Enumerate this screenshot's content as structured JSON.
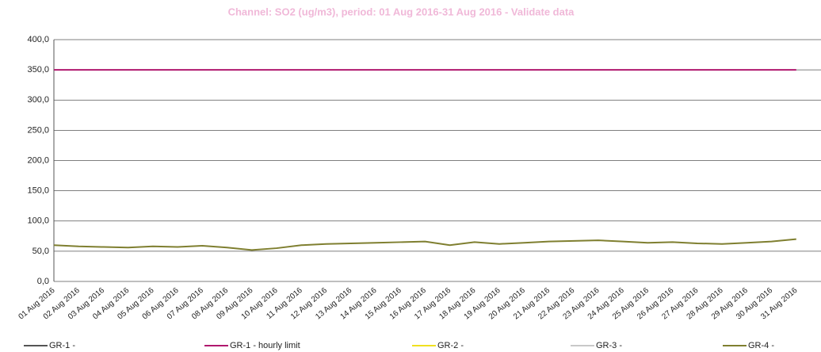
{
  "chart_data": {
    "type": "line",
    "title": "Channel: SO2 (ug/m3), period: 01 Aug 2016-31 Aug 2016 - Validate data",
    "categories": [
      "01 Aug 2016",
      "02 Aug 2016",
      "03 Aug 2016",
      "04 Aug 2016",
      "05 Aug 2016",
      "06 Aug 2016",
      "07 Aug 2016",
      "08 Aug 2016",
      "09 Aug 2016",
      "10 Aug 2016",
      "11 Aug 2016",
      "12 Aug 2016",
      "13 Aug 2016",
      "14 Aug 2016",
      "15 Aug 2016",
      "16 Aug 2016",
      "17 Aug 2016",
      "18 Aug 2016",
      "19 Aug 2016",
      "20 Aug 2016",
      "21 Aug 2016",
      "22 Aug 2016",
      "23 Aug 2016",
      "24 Aug 2016",
      "25 Aug 2016",
      "26 Aug 2016",
      "27 Aug 2016",
      "28 Aug 2016",
      "29 Aug 2016",
      "30 Aug 2016",
      "31 Aug 2016"
    ],
    "series": [
      {
        "name": "GR-1 -",
        "color": "#555555",
        "values": [
          null,
          null,
          null,
          null,
          null,
          null,
          null,
          null,
          null,
          null,
          null,
          null,
          null,
          null,
          null,
          null,
          null,
          null,
          null,
          null,
          null,
          null,
          null,
          null,
          null,
          null,
          null,
          null,
          null,
          null,
          null
        ]
      },
      {
        "name": "GR-1 - hourly limit",
        "color": "#b0186e",
        "values": [
          350,
          350,
          350,
          350,
          350,
          350,
          350,
          350,
          350,
          350,
          350,
          350,
          350,
          350,
          350,
          350,
          350,
          350,
          350,
          350,
          350,
          350,
          350,
          350,
          350,
          350,
          350,
          350,
          350,
          350,
          350
        ]
      },
      {
        "name": "GR-2 -",
        "color": "#f0e020",
        "values": [
          null,
          null,
          null,
          null,
          null,
          null,
          null,
          null,
          null,
          null,
          null,
          null,
          null,
          null,
          null,
          null,
          null,
          null,
          null,
          null,
          null,
          null,
          null,
          null,
          null,
          null,
          null,
          null,
          null,
          null,
          null
        ]
      },
      {
        "name": "GR-3 -",
        "color": "#c8c8c8",
        "values": [
          null,
          null,
          null,
          null,
          null,
          null,
          null,
          null,
          null,
          null,
          null,
          null,
          null,
          null,
          null,
          null,
          null,
          null,
          null,
          null,
          null,
          null,
          null,
          null,
          null,
          null,
          null,
          null,
          null,
          null,
          null
        ]
      },
      {
        "name": "GR-4 -",
        "color": "#7f7f30",
        "values": [
          60,
          58,
          57,
          56,
          58,
          57,
          59,
          56,
          52,
          55,
          60,
          62,
          63,
          64,
          65,
          66,
          60,
          65,
          62,
          64,
          66,
          67,
          68,
          66,
          64,
          65,
          63,
          62,
          64,
          66,
          70
        ]
      }
    ],
    "ylim": [
      0,
      400
    ],
    "yticks": [
      {
        "value": 0,
        "label": "0,0"
      },
      {
        "value": 50,
        "label": "50,0"
      },
      {
        "value": 100,
        "label": "100,0"
      },
      {
        "value": 150,
        "label": "150,0"
      },
      {
        "value": 200,
        "label": "200,0"
      },
      {
        "value": 250,
        "label": "250,0"
      },
      {
        "value": 300,
        "label": "300,0"
      },
      {
        "value": 350,
        "label": "350,0"
      },
      {
        "value": 400,
        "label": "400,0"
      }
    ],
    "grid": true
  }
}
